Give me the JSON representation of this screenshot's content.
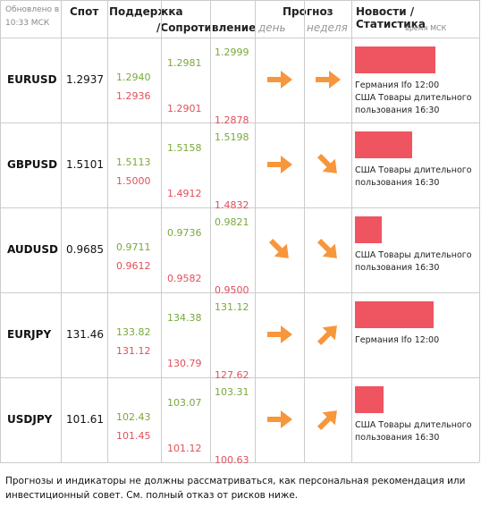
{
  "header": {
    "updated": "Обновлено в 10:33 МСК",
    "spot": "Спот",
    "support": "Поддержка",
    "resistance": "/Сопротивление",
    "forecast": "Прогноз",
    "day": "день",
    "week": "неделя",
    "news": "Новости / Статистика",
    "news_time": "время МСК"
  },
  "rows": [
    {
      "pair": "EURUSD",
      "spot": "1.2937",
      "levels": [
        [
          "1.2940",
          "1.2936"
        ],
        [
          "1.2981",
          "1.2901"
        ],
        [
          "1.2999",
          "1.2878"
        ]
      ],
      "news": [
        "Германия Ifo 12:00",
        "США Товары длительного пользования 16:30"
      ]
    },
    {
      "pair": "GBPUSD",
      "spot": "1.5101",
      "levels": [
        [
          "1.5113",
          "1.5000"
        ],
        [
          "1.5158",
          "1.4912"
        ],
        [
          "1.5198",
          "1.4832"
        ]
      ],
      "news": [
        "США Товары длительного пользования 16:30"
      ]
    },
    {
      "pair": "AUDUSD",
      "spot": "0.9685",
      "levels": [
        [
          "0.9711",
          "0.9612"
        ],
        [
          "0.9736",
          "0.9582"
        ],
        [
          "0.9821",
          "0.9500"
        ]
      ],
      "news": [
        "США Товары длительного пользования 16:30"
      ]
    },
    {
      "pair": "EURJPY",
      "spot": "131.46",
      "levels": [
        [
          "133.82",
          "131.12"
        ],
        [
          "134.38",
          "130.79"
        ],
        [
          "131.12",
          "127.62"
        ]
      ],
      "news": [
        "Германия Ifo 12:00"
      ]
    },
    {
      "pair": "USDJPY",
      "spot": "101.61",
      "levels": [
        [
          "102.43",
          "101.45"
        ],
        [
          "103.07",
          "101.12"
        ],
        [
          "103.31",
          "100.63"
        ]
      ],
      "news": [
        "США Товары длительного пользования 16:30"
      ]
    }
  ],
  "footer": "Прогнозы и индикаторы не должны рассматриваться, как персональная рекомендация или инвестиционный совет. См. полный отказ от рисков ниже."
}
